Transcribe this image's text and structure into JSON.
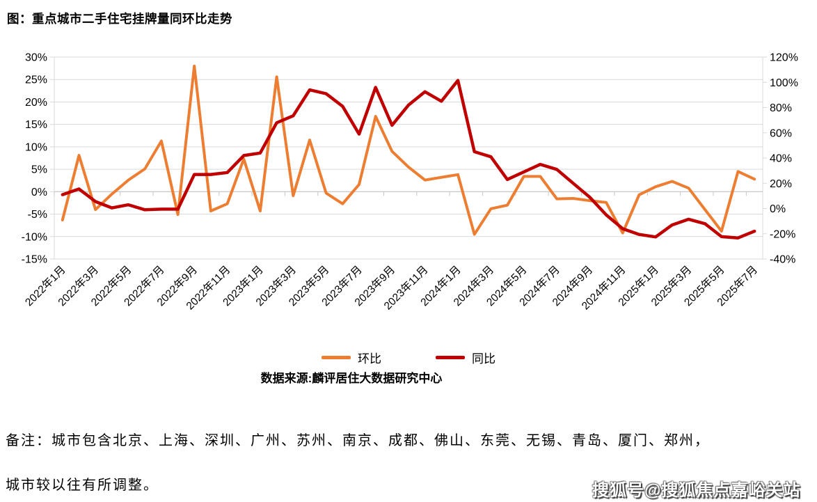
{
  "title": "图：重点城市二手住宅挂牌量同环比走势",
  "chart_data": {
    "type": "line",
    "x": [
      "2022年1月",
      "2022年2月",
      "2022年3月",
      "2022年4月",
      "2022年5月",
      "2022年6月",
      "2022年7月",
      "2022年8月",
      "2022年9月",
      "2022年10月",
      "2022年11月",
      "2022年12月",
      "2023年1月",
      "2023年2月",
      "2023年3月",
      "2023年4月",
      "2023年5月",
      "2023年6月",
      "2023年7月",
      "2023年8月",
      "2023年9月",
      "2023年10月",
      "2023年11月",
      "2023年12月",
      "2024年1月",
      "2024年2月",
      "2024年3月",
      "2024年4月",
      "2024年5月",
      "2024年6月",
      "2024年7月",
      "2024年8月",
      "2024年9月",
      "2024年10月",
      "2024年11月",
      "2024年12月",
      "2025年1月",
      "2025年2月",
      "2025年3月",
      "2025年4月",
      "2025年5月",
      "2025年6月",
      "2025年7月"
    ],
    "x_tick_step": 2,
    "series": [
      {
        "name": "环比",
        "axis": "left",
        "color": "#ED7D31",
        "values": [
          -6.3,
          8.1,
          -4.0,
          -0.5,
          2.6,
          5.1,
          11.3,
          -5.1,
          28.0,
          -4.3,
          -2.7,
          7.3,
          -4.3,
          25.6,
          -0.9,
          11.5,
          -0.3,
          -2.7,
          1.6,
          16.8,
          9.0,
          5.5,
          2.6,
          3.2,
          3.8,
          -9.5,
          -3.8,
          -3.0,
          3.4,
          3.4,
          -1.6,
          -1.5,
          -2.0,
          -2.4,
          -9.2,
          -0.7,
          1.1,
          2.3,
          0.8,
          -4.0,
          -8.8,
          4.5,
          2.8
        ]
      },
      {
        "name": "同比",
        "axis": "right",
        "color": "#C00000",
        "values": [
          11,
          15.5,
          5.5,
          0.5,
          3,
          -1,
          -0.5,
          -0.5,
          27,
          27,
          28.5,
          42,
          44,
          68,
          73.5,
          94,
          91,
          81,
          59,
          96,
          66,
          82,
          92.5,
          85,
          101.5,
          45,
          41,
          23,
          29,
          35,
          31,
          20,
          9,
          -5,
          -16,
          -20.5,
          -22.5,
          -13,
          -8.5,
          -12,
          -22.3,
          -23.3,
          -18
        ]
      }
    ],
    "left_axis": {
      "min": -15,
      "max": 30,
      "step": 5,
      "suffix": "%"
    },
    "right_axis": {
      "min": -40,
      "max": 120,
      "step": 20,
      "suffix": "%"
    },
    "grid": true,
    "legend_position": "bottom"
  },
  "legend": [
    {
      "label": "环比",
      "color": "#ED7D31"
    },
    {
      "label": "同比",
      "color": "#C00000"
    }
  ],
  "source": "数据来源:麟评居住大数据研究中心",
  "notes": {
    "line1": "备注：城市包含北京、上海、深圳、广州、苏州、南京、成都、佛山、东莞、无锡、青岛、厦门、郑州，",
    "line2": "城市较以往有所调整。"
  },
  "watermark": "搜狐号@搜狐焦点嘉峪关站",
  "colors": {
    "mom_line": "#ED7D31",
    "yoy_line": "#C00000",
    "gridline": "#D9D9D9",
    "zero_axis": "#C6C6C6",
    "label_text": "#000000"
  }
}
